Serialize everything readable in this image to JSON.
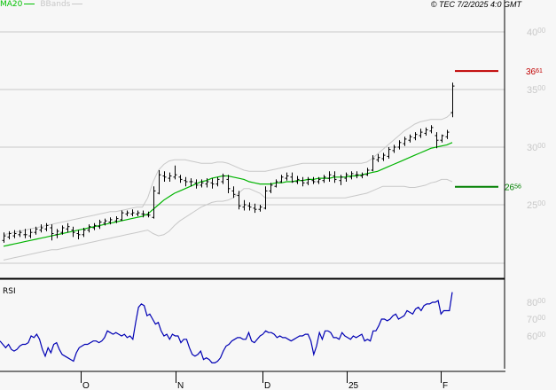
{
  "header": {
    "ma_label": "MA20",
    "bbands_label": "BBands",
    "copyright": "© TEC 7/2/2025 4:0 GMT"
  },
  "colors": {
    "background": "#f7f7f7",
    "ma20": "#00b400",
    "bbands": "#c8c8c8",
    "price_bars": "#000000",
    "rsi": "#0000b4",
    "resistance": "#c00000",
    "support": "#008000",
    "grid": "#c8c8c8",
    "axis_text": "#c8c8c8"
  },
  "price_panel": {
    "levels": {
      "resistance": {
        "value": 3661,
        "label_main": "36",
        "label_sup": "61"
      },
      "support": {
        "value": 2656,
        "label_main": "26",
        "label_sup": "56"
      }
    },
    "y_ticks": [
      {
        "value": 4000,
        "main": "40",
        "sup": "00"
      },
      {
        "value": 3500,
        "main": "35",
        "sup": "00"
      },
      {
        "value": 3000,
        "main": "30",
        "sup": "00"
      },
      {
        "value": 2500,
        "main": "25",
        "sup": "00"
      }
    ]
  },
  "rsi_panel": {
    "label": "RSI",
    "y_ticks": [
      {
        "value": 80,
        "main": "80",
        "sup": "00"
      },
      {
        "value": 70,
        "main": "70",
        "sup": "00"
      },
      {
        "value": 60,
        "main": "60",
        "sup": "00"
      }
    ]
  },
  "x_axis": {
    "ticks": [
      {
        "label": "O",
        "x": 91
      },
      {
        "label": "N",
        "x": 198
      },
      {
        "label": "D",
        "x": 296
      },
      {
        "label": "25",
        "x": 391
      },
      {
        "label": "F",
        "x": 497
      }
    ]
  },
  "chart_data": {
    "type": "line",
    "title": "",
    "xlabel": "",
    "ylabel": "",
    "series_notes": "OHLC price bars with MA20 and Bollinger Bands; RSI sub-panel",
    "x_ticks": [
      "O",
      "N",
      "D",
      "25",
      "F"
    ],
    "ylim": [
      2000,
      4200
    ],
    "ohlc": [
      [
        2190,
        2260,
        2170,
        2230
      ],
      [
        2220,
        2270,
        2200,
        2250
      ],
      [
        2230,
        2280,
        2210,
        2250
      ],
      [
        2240,
        2280,
        2220,
        2260
      ],
      [
        2240,
        2290,
        2210,
        2240
      ],
      [
        2230,
        2290,
        2210,
        2260
      ],
      [
        2260,
        2310,
        2240,
        2290
      ],
      [
        2280,
        2330,
        2260,
        2300
      ],
      [
        2290,
        2340,
        2270,
        2320
      ],
      [
        2300,
        2330,
        2190,
        2250
      ],
      [
        2240,
        2290,
        2210,
        2270
      ],
      [
        2260,
        2320,
        2240,
        2300
      ],
      [
        2290,
        2340,
        2260,
        2310
      ],
      [
        2280,
        2310,
        2220,
        2260
      ],
      [
        2250,
        2280,
        2200,
        2240
      ],
      [
        2240,
        2300,
        2220,
        2280
      ],
      [
        2280,
        2330,
        2260,
        2310
      ],
      [
        2300,
        2340,
        2280,
        2320
      ],
      [
        2310,
        2370,
        2290,
        2350
      ],
      [
        2340,
        2380,
        2320,
        2360
      ],
      [
        2350,
        2390,
        2330,
        2370
      ],
      [
        2360,
        2400,
        2340,
        2380
      ],
      [
        2370,
        2450,
        2360,
        2430
      ],
      [
        2420,
        2450,
        2400,
        2430
      ],
      [
        2420,
        2460,
        2400,
        2430
      ],
      [
        2420,
        2450,
        2400,
        2430
      ],
      [
        2420,
        2450,
        2390,
        2420
      ],
      [
        2410,
        2440,
        2390,
        2410
      ],
      [
        2390,
        2660,
        2380,
        2620
      ],
      [
        2600,
        2800,
        2590,
        2760
      ],
      [
        2750,
        2790,
        2700,
        2740
      ],
      [
        2730,
        2780,
        2700,
        2750
      ],
      [
        2740,
        2840,
        2720,
        2760
      ],
      [
        2740,
        2760,
        2690,
        2720
      ],
      [
        2710,
        2740,
        2660,
        2700
      ],
      [
        2700,
        2730,
        2660,
        2700
      ],
      [
        2690,
        2720,
        2640,
        2670
      ],
      [
        2670,
        2720,
        2650,
        2690
      ],
      [
        2680,
        2730,
        2650,
        2700
      ],
      [
        2690,
        2730,
        2640,
        2680
      ],
      [
        2680,
        2740,
        2660,
        2720
      ],
      [
        2700,
        2770,
        2680,
        2750
      ],
      [
        2720,
        2760,
        2600,
        2640
      ],
      [
        2620,
        2660,
        2560,
        2590
      ],
      [
        2580,
        2620,
        2460,
        2490
      ],
      [
        2480,
        2540,
        2450,
        2500
      ],
      [
        2490,
        2520,
        2450,
        2480
      ],
      [
        2470,
        2510,
        2430,
        2460
      ],
      [
        2460,
        2500,
        2440,
        2480
      ],
      [
        2470,
        2660,
        2460,
        2620
      ],
      [
        2620,
        2690,
        2600,
        2670
      ],
      [
        2660,
        2720,
        2650,
        2700
      ],
      [
        2700,
        2760,
        2690,
        2740
      ],
      [
        2730,
        2780,
        2710,
        2750
      ],
      [
        2740,
        2780,
        2690,
        2700
      ],
      [
        2700,
        2750,
        2680,
        2720
      ],
      [
        2710,
        2740,
        2660,
        2690
      ],
      [
        2690,
        2740,
        2670,
        2720
      ],
      [
        2710,
        2740,
        2680,
        2700
      ],
      [
        2700,
        2740,
        2680,
        2720
      ],
      [
        2710,
        2760,
        2690,
        2740
      ],
      [
        2730,
        2790,
        2700,
        2760
      ],
      [
        2750,
        2790,
        2690,
        2720
      ],
      [
        2710,
        2760,
        2670,
        2740
      ],
      [
        2730,
        2780,
        2700,
        2760
      ],
      [
        2740,
        2790,
        2720,
        2770
      ],
      [
        2760,
        2790,
        2730,
        2760
      ],
      [
        2750,
        2780,
        2730,
        2760
      ],
      [
        2760,
        2820,
        2750,
        2800
      ],
      [
        2800,
        2930,
        2790,
        2900
      ],
      [
        2890,
        2940,
        2870,
        2910
      ],
      [
        2900,
        2950,
        2880,
        2930
      ],
      [
        2920,
        3000,
        2900,
        2980
      ],
      [
        2970,
        3020,
        2950,
        3000
      ],
      [
        3000,
        3060,
        2980,
        3040
      ],
      [
        3030,
        3090,
        3010,
        3070
      ],
      [
        3060,
        3110,
        3040,
        3090
      ],
      [
        3080,
        3130,
        3060,
        3110
      ],
      [
        3100,
        3160,
        3080,
        3130
      ],
      [
        3120,
        3170,
        3100,
        3150
      ],
      [
        3140,
        3190,
        3120,
        3170
      ],
      [
        3100,
        3130,
        2990,
        3060
      ],
      [
        3060,
        3110,
        3040,
        3100
      ],
      [
        3090,
        3150,
        3070,
        3130
      ],
      [
        3300,
        3560,
        3260,
        3530
      ]
    ],
    "ma20": [
      2140,
      2150,
      2160,
      2170,
      2180,
      2190,
      2200,
      2210,
      2220,
      2230,
      2240,
      2250,
      2260,
      2270,
      2280,
      2290,
      2300,
      2310,
      2320,
      2330,
      2340,
      2350,
      2360,
      2370,
      2380,
      2390,
      2400,
      2420,
      2460,
      2500,
      2540,
      2570,
      2600,
      2620,
      2640,
      2660,
      2680,
      2700,
      2710,
      2730,
      2740,
      2750,
      2750,
      2740,
      2730,
      2720,
      2700,
      2690,
      2680,
      2680,
      2680,
      2690,
      2690,
      2700,
      2700,
      2710,
      2710,
      2720,
      2720,
      2730,
      2730,
      2730,
      2740,
      2740,
      2740,
      2750,
      2750,
      2760,
      2770,
      2780,
      2790,
      2810,
      2830,
      2850,
      2870,
      2890,
      2910,
      2930,
      2950,
      2970,
      2990,
      3000,
      3010,
      3020,
      3040
    ],
    "bb_upper": [
      2240,
      2250,
      2260,
      2270,
      2280,
      2290,
      2300,
      2310,
      2320,
      2330,
      2340,
      2350,
      2360,
      2370,
      2380,
      2390,
      2400,
      2410,
      2420,
      2430,
      2440,
      2440,
      2450,
      2460,
      2470,
      2480,
      2480,
      2560,
      2700,
      2800,
      2850,
      2880,
      2890,
      2890,
      2890,
      2880,
      2870,
      2860,
      2860,
      2860,
      2870,
      2870,
      2860,
      2840,
      2820,
      2800,
      2790,
      2790,
      2790,
      2790,
      2800,
      2810,
      2820,
      2830,
      2840,
      2850,
      2860,
      2860,
      2860,
      2860,
      2860,
      2860,
      2860,
      2860,
      2860,
      2860,
      2860,
      2860,
      2870,
      2900,
      2940,
      2980,
      3020,
      3060,
      3100,
      3140,
      3170,
      3200,
      3220,
      3230,
      3240,
      3240,
      3240,
      3260,
      3300
    ],
    "bb_lower": [
      2020,
      2030,
      2040,
      2050,
      2060,
      2070,
      2080,
      2090,
      2100,
      2110,
      2110,
      2120,
      2130,
      2140,
      2150,
      2160,
      2170,
      2180,
      2190,
      2200,
      2210,
      2220,
      2230,
      2240,
      2250,
      2260,
      2270,
      2280,
      2250,
      2230,
      2240,
      2270,
      2320,
      2360,
      2390,
      2420,
      2450,
      2480,
      2500,
      2520,
      2530,
      2530,
      2540,
      2560,
      2600,
      2640,
      2640,
      2620,
      2600,
      2560,
      2560,
      2560,
      2560,
      2560,
      2560,
      2560,
      2560,
      2560,
      2560,
      2560,
      2560,
      2560,
      2560,
      2560,
      2560,
      2570,
      2580,
      2590,
      2600,
      2620,
      2640,
      2660,
      2660,
      2660,
      2660,
      2660,
      2650,
      2650,
      2660,
      2670,
      2690,
      2700,
      2720,
      2720,
      2700
    ],
    "rsi": [
      57,
      55,
      53,
      55,
      52,
      51,
      52,
      54,
      55,
      55,
      56,
      60,
      59,
      61,
      58,
      52,
      48,
      53,
      50,
      55,
      56,
      52,
      49,
      48,
      47,
      46,
      45,
      50,
      53,
      54,
      55,
      55,
      56,
      57,
      57,
      56,
      57,
      59,
      63,
      62,
      61,
      62,
      61,
      60,
      61,
      59,
      60,
      58,
      68,
      77,
      79,
      78,
      72,
      73,
      70,
      67,
      68,
      63,
      60,
      61,
      58,
      61,
      60,
      60,
      56,
      58,
      58,
      53,
      49,
      48,
      49,
      51,
      46,
      47,
      46,
      44,
      44,
      45,
      47,
      51,
      54,
      55,
      57,
      58,
      59,
      59,
      58,
      58,
      62,
      57,
      56,
      58,
      60,
      61,
      63,
      62,
      62,
      61,
      59,
      60,
      59,
      59,
      58,
      57,
      58,
      59,
      60,
      60,
      61,
      61,
      57,
      49,
      54,
      62,
      58,
      63,
      63,
      62,
      59,
      59,
      58,
      62,
      60,
      59,
      58,
      60,
      59,
      60,
      61,
      57,
      58,
      57,
      63,
      63,
      66,
      70,
      70,
      69,
      70,
      72,
      73,
      70,
      71,
      72,
      75,
      74,
      73,
      76,
      77,
      75,
      78,
      79,
      79,
      80,
      80,
      81,
      73,
      75,
      75,
      75,
      86
    ],
    "levels": {
      "resistance": 3661,
      "support": 2656
    }
  }
}
